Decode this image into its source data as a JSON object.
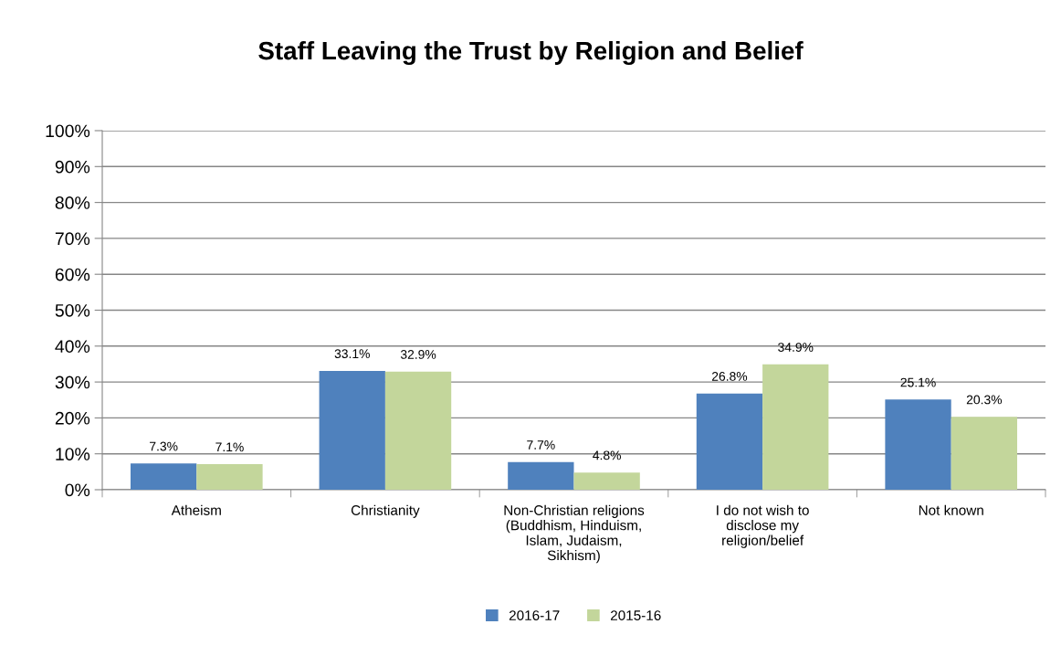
{
  "chart_data": {
    "type": "bar",
    "title": "Staff Leaving the Trust by Religion and Belief",
    "categories": [
      "Atheism",
      "Christianity",
      "Non-Christian religions\n(Buddhism, Hinduism,\nIslam, Judaism,\nSikhism)",
      "I do not wish to\ndisclose my\nreligion/belief",
      "Not known"
    ],
    "series": [
      {
        "name": "2016-17",
        "color": "#4f81bd",
        "values": [
          7.3,
          33.1,
          7.7,
          26.8,
          25.1
        ],
        "value_labels": [
          "7.3%",
          "33.1%",
          "7.7%",
          "26.8%",
          "25.1%"
        ]
      },
      {
        "name": "2015-16",
        "color": "#c3d69b",
        "values": [
          7.1,
          32.9,
          4.8,
          34.9,
          20.3
        ],
        "value_labels": [
          "7.1%",
          "32.9%",
          "4.8%",
          "34.9%",
          "20.3%"
        ]
      }
    ],
    "ylim": [
      0,
      100
    ],
    "yticks": [
      {
        "value": 0,
        "label": "0%"
      },
      {
        "value": 10,
        "label": "10%"
      },
      {
        "value": 20,
        "label": "20%"
      },
      {
        "value": 30,
        "label": "30%"
      },
      {
        "value": 40,
        "label": "40%"
      },
      {
        "value": 50,
        "label": "50%"
      },
      {
        "value": 60,
        "label": "60%"
      },
      {
        "value": 70,
        "label": "70%"
      },
      {
        "value": 80,
        "label": "80%"
      },
      {
        "value": 90,
        "label": "90%"
      },
      {
        "value": 100,
        "label": "100%"
      }
    ],
    "grid": "y",
    "legend": "bottom"
  }
}
